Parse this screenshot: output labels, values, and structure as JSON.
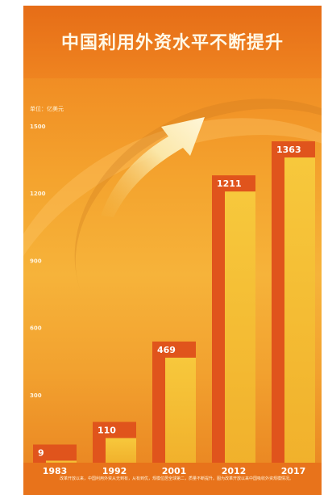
{
  "chart_data": {
    "type": "bar",
    "title": "中国利用外资水平不断提升",
    "unit": "单位：亿美元",
    "categories": [
      "1983",
      "1992",
      "2001",
      "2012",
      "2017"
    ],
    "values": [
      9,
      110,
      469,
      1211,
      1363
    ],
    "yticks": [
      1500,
      1200,
      900,
      600,
      300
    ],
    "ylim": [
      0,
      1500
    ],
    "grid": false,
    "xlabel": "",
    "ylabel": ""
  },
  "footnote": "改革开放以来，中国利用外资从无到有，从有到优，规模位居全球第二，质量不断提升。图为改革开放以来中国吸收外资规模情况。",
  "colors": {
    "bar_back": "#e0541c",
    "bar_front": "#f6c238",
    "label_box": "#d8481a"
  }
}
